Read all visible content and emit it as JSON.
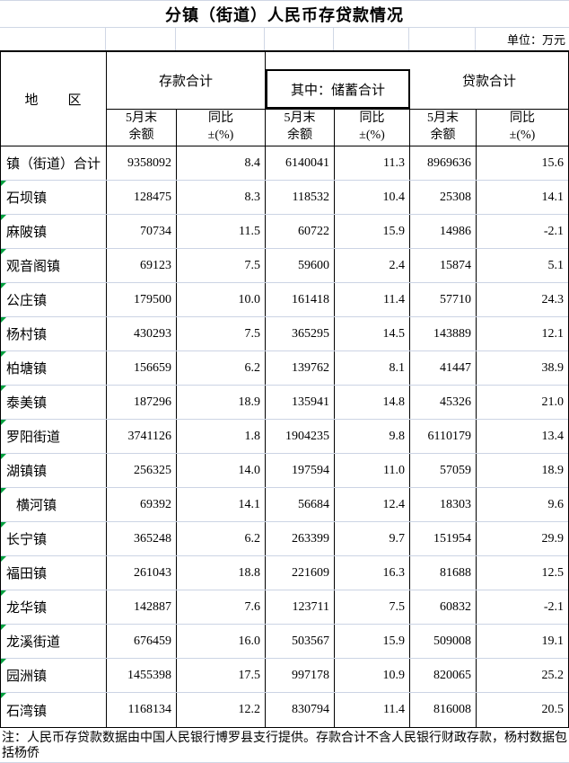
{
  "title": "分镇（街道）人民币存贷款情况",
  "unit_label": "单位：万元",
  "header": {
    "region_label": "地　　区",
    "deposits_label": "存款合计",
    "savings_label": "其中：储蓄合计",
    "loans_label": "贷款合计",
    "balance_line1": "5月末",
    "balance_line2": "余额",
    "yoy_line1": "同比",
    "yoy_line2": "±(%)"
  },
  "rows": [
    {
      "name": "镇（街道）合计",
      "flag": false,
      "indent": false,
      "values": [
        "9358092",
        "8.4",
        "6140041",
        "11.3",
        "8969636",
        "15.6"
      ]
    },
    {
      "name": "石坝镇",
      "flag": true,
      "indent": false,
      "values": [
        "128475",
        "8.3",
        "118532",
        "10.4",
        "25308",
        "14.1"
      ]
    },
    {
      "name": "麻陂镇",
      "flag": true,
      "indent": false,
      "values": [
        "70734",
        "11.5",
        "60722",
        "15.9",
        "14986",
        "-2.1"
      ]
    },
    {
      "name": "观音阁镇",
      "flag": true,
      "indent": false,
      "values": [
        "69123",
        "7.5",
        "59600",
        "2.4",
        "15874",
        "5.1"
      ]
    },
    {
      "name": "公庄镇",
      "flag": true,
      "indent": false,
      "values": [
        "179500",
        "10.0",
        "161418",
        "11.4",
        "57710",
        "24.3"
      ]
    },
    {
      "name": "杨村镇",
      "flag": true,
      "indent": false,
      "values": [
        "430293",
        "7.5",
        "365295",
        "14.5",
        "143889",
        "12.1"
      ]
    },
    {
      "name": "柏塘镇",
      "flag": true,
      "indent": false,
      "values": [
        "156659",
        "6.2",
        "139762",
        "8.1",
        "41447",
        "38.9"
      ]
    },
    {
      "name": "泰美镇",
      "flag": true,
      "indent": false,
      "values": [
        "187296",
        "18.9",
        "135941",
        "14.8",
        "45326",
        "21.0"
      ]
    },
    {
      "name": "罗阳街道",
      "flag": true,
      "indent": false,
      "values": [
        "3741126",
        "1.8",
        "1904235",
        "9.8",
        "6110179",
        "13.4"
      ]
    },
    {
      "name": "湖镇镇",
      "flag": true,
      "indent": false,
      "values": [
        "256325",
        "14.0",
        "197594",
        "11.0",
        "57059",
        "18.9"
      ]
    },
    {
      "name": "横河镇",
      "flag": true,
      "indent": true,
      "values": [
        "69392",
        "14.1",
        "56684",
        "12.4",
        "18303",
        "9.6"
      ]
    },
    {
      "name": "长宁镇",
      "flag": true,
      "indent": false,
      "values": [
        "365248",
        "6.2",
        "263399",
        "9.7",
        "151954",
        "29.9"
      ]
    },
    {
      "name": "福田镇",
      "flag": true,
      "indent": false,
      "values": [
        "261043",
        "18.8",
        "221609",
        "16.3",
        "81688",
        "12.5"
      ]
    },
    {
      "name": "龙华镇",
      "flag": true,
      "indent": false,
      "values": [
        "142887",
        "7.6",
        "123711",
        "7.5",
        "60832",
        "-2.1"
      ]
    },
    {
      "name": "龙溪街道",
      "flag": true,
      "indent": false,
      "values": [
        "676459",
        "16.0",
        "503567",
        "15.9",
        "509008",
        "19.1"
      ]
    },
    {
      "name": "园洲镇",
      "flag": true,
      "indent": false,
      "values": [
        "1455398",
        "17.5",
        "997178",
        "10.9",
        "820065",
        "25.2"
      ]
    },
    {
      "name": "石湾镇",
      "flag": true,
      "indent": false,
      "values": [
        "1168134",
        "12.2",
        "830794",
        "11.4",
        "816008",
        "20.5"
      ]
    }
  ],
  "note_lines": [
    "注：人民币存贷款数据由中国人民银行博罗县支行提供。存款合计不含人民银行财政存款，杨村数据包括杨侨",
    "。"
  ],
  "colors": {
    "border": "#000000",
    "gridline": "#d0d7e5",
    "flag_green": "#00a03e",
    "text": "#000000",
    "background": "#ffffff"
  }
}
